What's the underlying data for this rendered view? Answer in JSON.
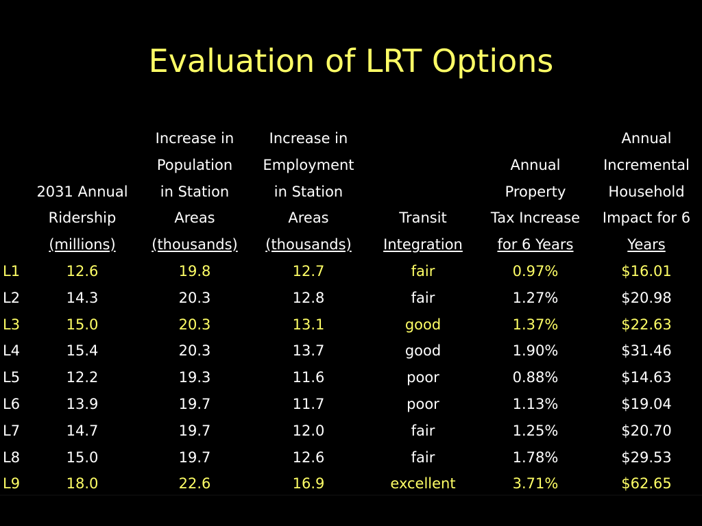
{
  "slide": {
    "title": "Evaluation of LRT Options"
  },
  "colors": {
    "background": "#000000",
    "highlight": "#ffff66",
    "normal": "#ffffff"
  },
  "table": {
    "headers": [
      {
        "lines": [
          ""
        ],
        "underlined": ""
      },
      {
        "lines": [
          "2031 Annual",
          "Ridership"
        ],
        "underlined": "(millions)"
      },
      {
        "lines": [
          "Increase in",
          "Population",
          "in Station",
          "Areas"
        ],
        "underlined": "(thousands)"
      },
      {
        "lines": [
          "Increase in",
          "Employment",
          "in Station",
          "Areas"
        ],
        "underlined": "(thousands)"
      },
      {
        "lines": [
          "Transit"
        ],
        "underlined": "Integration"
      },
      {
        "lines": [
          "Annual",
          "Property",
          "Tax Increase"
        ],
        "underlined": "for 6 Years"
      },
      {
        "lines": [
          "Annual",
          "Incremental",
          "Household",
          "Impact for 6"
        ],
        "underlined": "Years"
      }
    ],
    "rows": [
      {
        "highlight": true,
        "cells": [
          "L1",
          "12.6",
          "19.8",
          "12.7",
          "fair",
          "0.97%",
          "$16.01"
        ]
      },
      {
        "highlight": false,
        "cells": [
          "L2",
          "14.3",
          "20.3",
          "12.8",
          "fair",
          "1.27%",
          "$20.98"
        ]
      },
      {
        "highlight": true,
        "cells": [
          "L3",
          "15.0",
          "20.3",
          "13.1",
          "good",
          "1.37%",
          "$22.63"
        ]
      },
      {
        "highlight": false,
        "cells": [
          "L4",
          "15.4",
          "20.3",
          "13.7",
          "good",
          "1.90%",
          "$31.46"
        ]
      },
      {
        "highlight": false,
        "cells": [
          "L5",
          "12.2",
          "19.3",
          "11.6",
          "poor",
          "0.88%",
          "$14.63"
        ]
      },
      {
        "highlight": false,
        "cells": [
          "L6",
          "13.9",
          "19.7",
          "11.7",
          "poor",
          "1.13%",
          "$19.04"
        ]
      },
      {
        "highlight": false,
        "cells": [
          "L7",
          "14.7",
          "19.7",
          "12.0",
          "fair",
          "1.25%",
          "$20.70"
        ]
      },
      {
        "highlight": false,
        "cells": [
          "L8",
          "15.0",
          "19.7",
          "12.6",
          "fair",
          "1.78%",
          "$29.53"
        ]
      },
      {
        "highlight": true,
        "cells": [
          "L9",
          "18.0",
          "22.6",
          "16.9",
          "excellent",
          "3.71%",
          "$62.65"
        ]
      }
    ]
  }
}
